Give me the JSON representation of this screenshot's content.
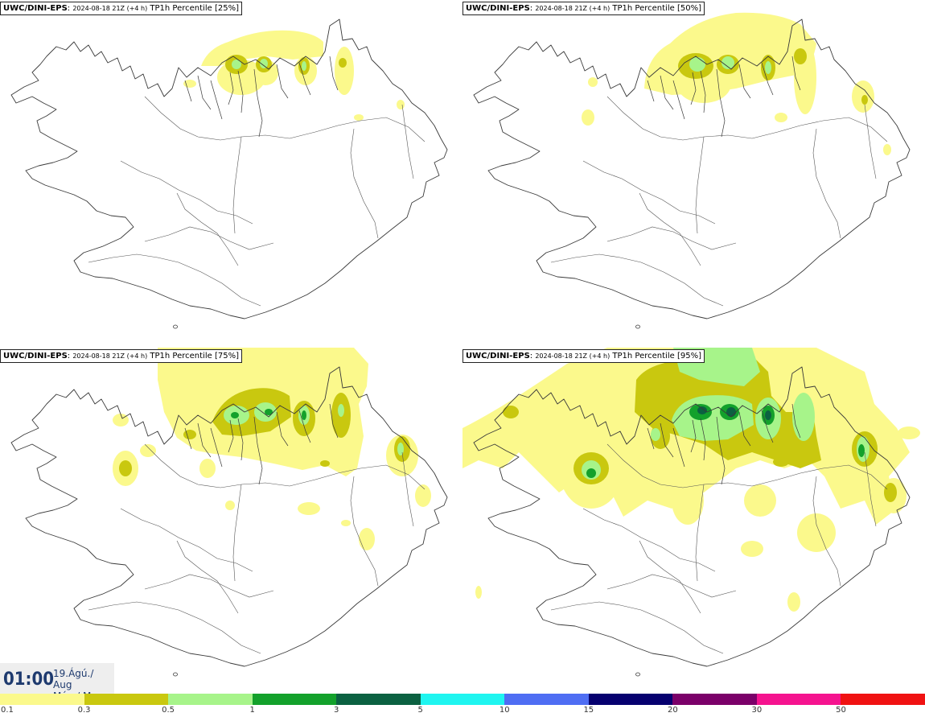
{
  "colors": {
    "pale_yellow": "#fbf98c",
    "olive": "#c9c80f",
    "light_green": "#a7f48a",
    "green": "#13a12b",
    "dark_green": "#0b6141",
    "cyan": "#1ff5f0",
    "blue": "#4f6ef3",
    "navy": "#06006f",
    "purple": "#7b0069",
    "magenta": "#f5138f",
    "red": "#f01212",
    "coastline": "#3a3a3a"
  },
  "panels": [
    {
      "source": "UWC/DINI-EPS",
      "run": "2024-08-18 21Z (+4 h)",
      "label": "TP1h Percentile [25%]"
    },
    {
      "source": "UWC/DINI-EPS",
      "run": "2024-08-18 21Z (+4 h)",
      "label": "TP1h Percentile [50%]"
    },
    {
      "source": "UWC/DINI-EPS",
      "run": "2024-08-18 21Z (+4 h)",
      "label": "TP1h Percentile [75%]"
    },
    {
      "source": "UWC/DINI-EPS",
      "run": "2024-08-18 21Z (+4 h)",
      "label": "TP1h Percentile [95%]"
    }
  ],
  "valid_time": {
    "time": "01:00",
    "date_line1": "19.Ágú./ Aug",
    "date_line2": "Mán./ Mon"
  },
  "colorbar": {
    "ticks": [
      "0.1",
      "0.3",
      "0.5",
      "1",
      "3",
      "5",
      "10",
      "15",
      "20",
      "30",
      "50"
    ],
    "colors": [
      "#fbf98c",
      "#c9c80f",
      "#a7f48a",
      "#13a12b",
      "#0b6141",
      "#1ff5f0",
      "#4f6ef3",
      "#06006f",
      "#7b0069",
      "#f5138f",
      "#f01212"
    ]
  }
}
